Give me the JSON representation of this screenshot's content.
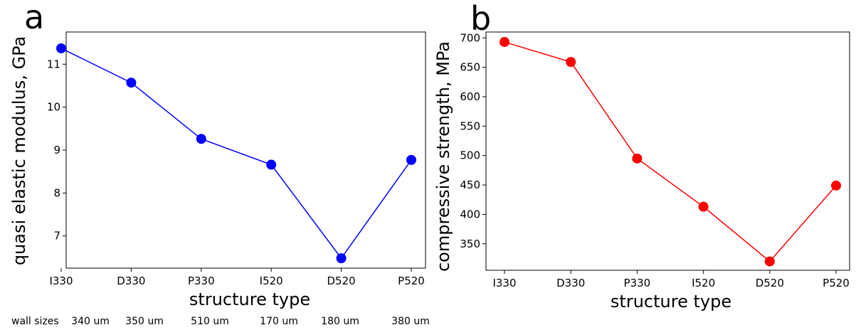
{
  "chart_data": [
    {
      "type": "line",
      "panel_label": "a",
      "categories": [
        "I330",
        "D330",
        "P330",
        "I520",
        "D520",
        "P520"
      ],
      "series": [
        {
          "values": [
            11.37,
            10.57,
            9.26,
            8.66,
            6.48,
            8.77
          ],
          "color": "#0000ff"
        }
      ],
      "xlabel": "structure type",
      "ylabel": "quasi elastic modulus, GPa",
      "yticks": [
        7,
        8,
        9,
        10,
        11
      ],
      "ylim": [
        6.25,
        11.75
      ],
      "grid": false
    },
    {
      "type": "line",
      "panel_label": "b",
      "categories": [
        "I330",
        "D330",
        "P330",
        "I520",
        "D520",
        "P520"
      ],
      "series": [
        {
          "values": [
            693,
            659,
            495,
            413,
            320,
            449
          ],
          "color": "#ff0000"
        }
      ],
      "xlabel": "structure type",
      "ylabel": "compressive strength, MPa",
      "yticks": [
        350,
        400,
        450,
        500,
        550,
        600,
        650,
        700
      ],
      "ylim": [
        305,
        710
      ],
      "grid": false
    }
  ],
  "wall_sizes": {
    "label": "wall sizes",
    "values": [
      "340 um",
      "350 um",
      "510 um",
      "170 um",
      "180 um",
      "380 um"
    ]
  }
}
